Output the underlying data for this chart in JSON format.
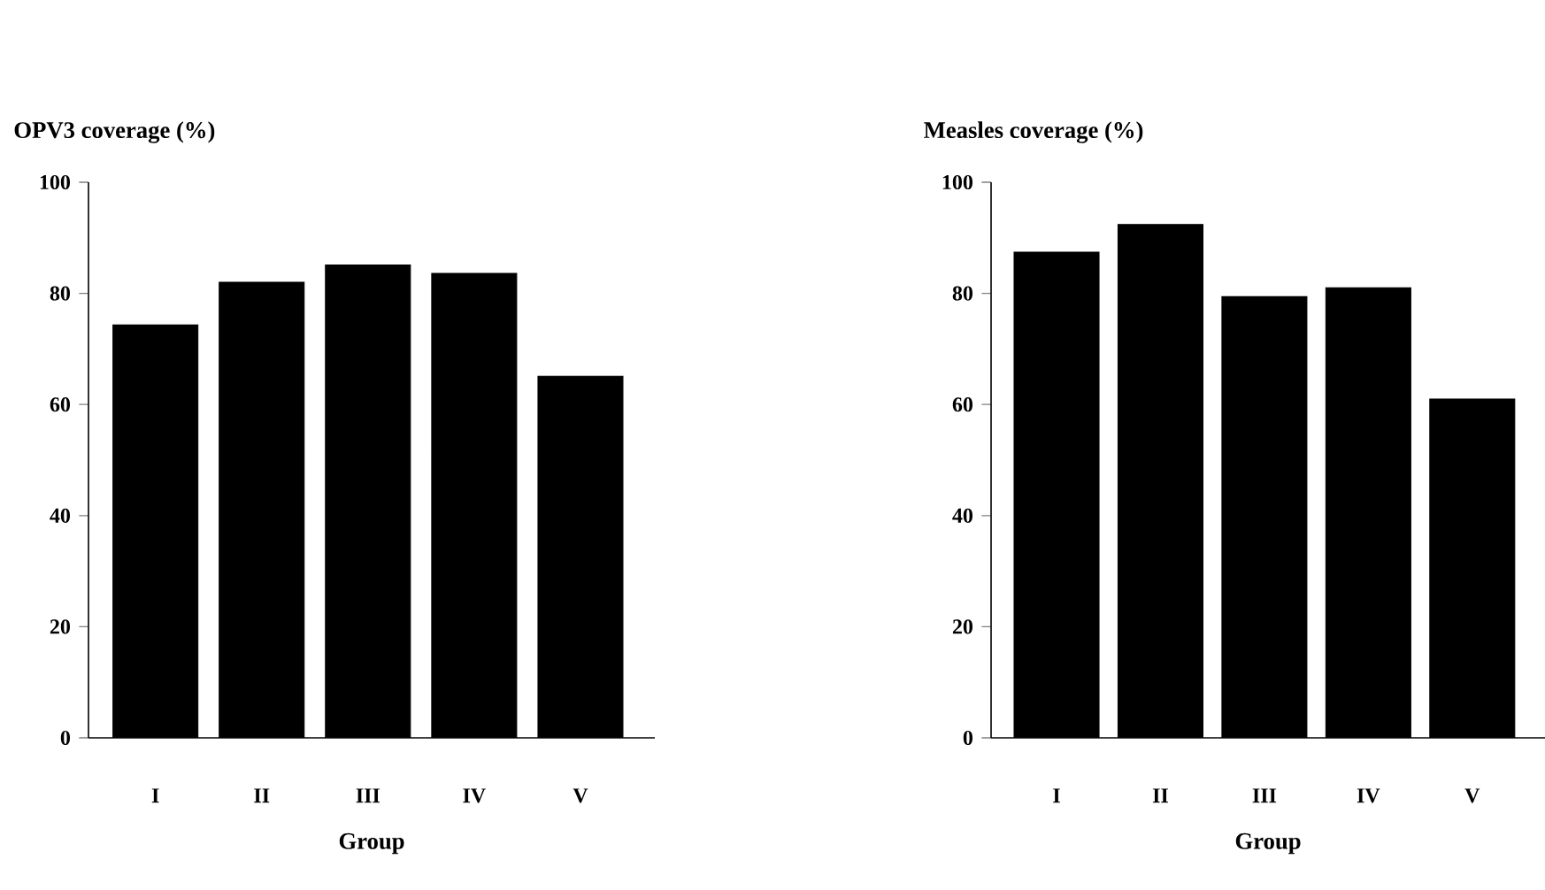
{
  "chart_data": [
    {
      "type": "bar",
      "title": "OPV3 coverage (%)",
      "xlabel": "Group",
      "categories": [
        "I",
        "II",
        "III",
        "IV",
        "V"
      ],
      "values": [
        74.3,
        82.0,
        85.1,
        83.6,
        65.1
      ],
      "color": "#000000",
      "ylim": [
        0,
        100
      ],
      "yticks": [
        0,
        20,
        40,
        60,
        80,
        100
      ]
    },
    {
      "type": "bar",
      "title": "Measles coverage (%)",
      "xlabel": "Group",
      "categories": [
        "I",
        "II",
        "III",
        "IV",
        "V"
      ],
      "values": [
        87.4,
        92.4,
        79.4,
        81.0,
        61.0
      ],
      "color": "#000000",
      "ylim": [
        0,
        100
      ],
      "yticks": [
        0,
        20,
        40,
        60,
        80,
        100
      ]
    }
  ]
}
